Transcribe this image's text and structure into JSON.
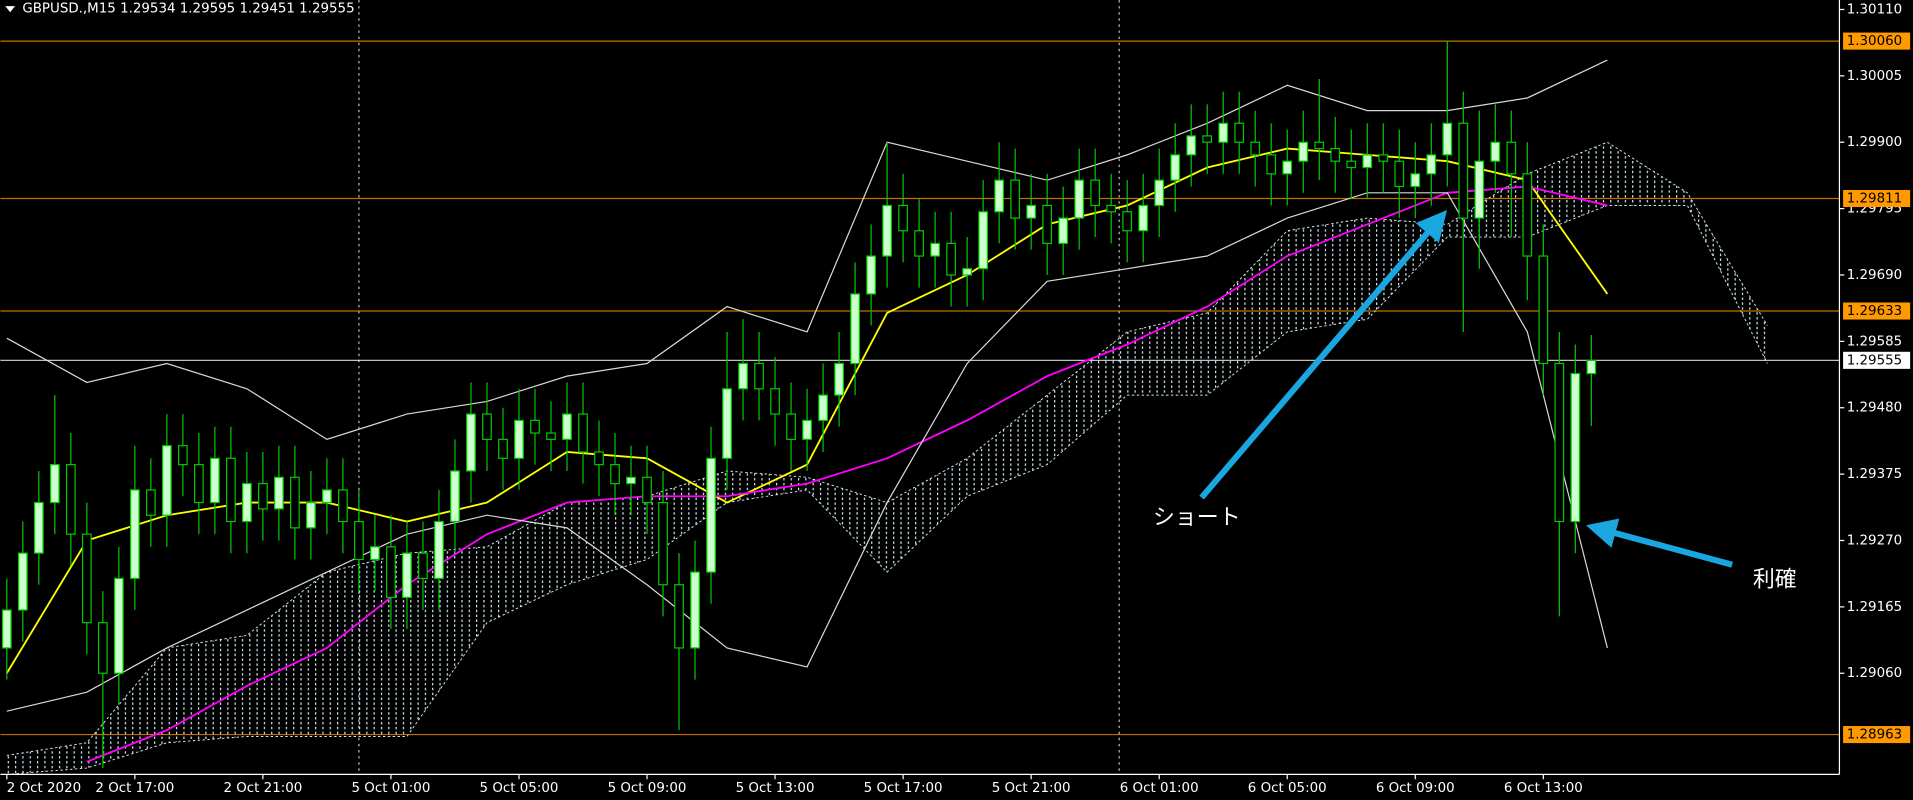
{
  "chart_data": {
    "type": "candlestick",
    "title": "GBPUSD.,M15  1.29534 1.29595 1.29451 1.29555",
    "xlim": [
      -0.4,
      114.5
    ],
    "xticks": [
      {
        "value": 0,
        "label": "2 Oct 2020"
      },
      {
        "value": 8,
        "label": "2 Oct 17:00"
      },
      {
        "value": 16,
        "label": "2 Oct 21:00"
      },
      {
        "value": 24,
        "label": "5 Oct 01:00"
      },
      {
        "value": 32,
        "label": "5 Oct 05:00"
      },
      {
        "value": 40,
        "label": "5 Oct 09:00"
      },
      {
        "value": 48,
        "label": "5 Oct 13:00"
      },
      {
        "value": 56,
        "label": "5 Oct 17:00"
      },
      {
        "value": 64,
        "label": "5 Oct 21:00"
      },
      {
        "value": 72,
        "label": "6 Oct 01:00"
      },
      {
        "value": 80,
        "label": "6 Oct 05:00"
      },
      {
        "value": 88,
        "label": "6 Oct 09:00"
      },
      {
        "value": 96,
        "label": "6 Oct 13:00"
      }
    ],
    "ylim": [
      1.289,
      1.30125
    ],
    "yticks": [
      {
        "value": 1.3011,
        "label": "1.30110"
      },
      {
        "value": 1.30005,
        "label": "1.30005"
      },
      {
        "value": 1.299,
        "label": "1.29900"
      },
      {
        "value": 1.29795,
        "label": "1.29795"
      },
      {
        "value": 1.2969,
        "label": "1.29690"
      },
      {
        "value": 1.29585,
        "label": "1.29585"
      },
      {
        "value": 1.2948,
        "label": "1.29480"
      },
      {
        "value": 1.29375,
        "label": "1.29375"
      },
      {
        "value": 1.2927,
        "label": "1.29270"
      },
      {
        "value": 1.29165,
        "label": "1.29165"
      },
      {
        "value": 1.2906,
        "label": "1.29060"
      }
    ],
    "candle_colors": {
      "up": "#ccffcc",
      "down": "#000000",
      "wick": "#00c800"
    },
    "x": [
      0,
      1,
      2,
      3,
      4,
      5,
      6,
      7,
      8,
      9,
      10,
      11,
      12,
      13,
      14,
      15,
      16,
      17,
      18,
      19,
      20,
      21,
      22,
      23,
      24,
      25,
      26,
      27,
      28,
      29,
      30,
      31,
      32,
      33,
      34,
      35,
      36,
      37,
      38,
      39,
      40,
      41,
      42,
      43,
      44,
      45,
      46,
      47,
      48,
      49,
      50,
      51,
      52,
      53,
      54,
      55,
      56,
      57,
      58,
      59,
      60,
      61,
      62,
      63,
      64,
      65,
      66,
      67,
      68,
      69,
      70,
      71,
      72,
      73,
      74,
      75,
      76,
      77,
      78,
      79,
      80,
      81,
      82,
      83,
      84,
      85,
      86,
      87,
      88,
      89,
      90,
      91,
      92,
      93,
      94,
      95,
      96,
      97,
      98,
      99
    ],
    "open": [
      1.291,
      1.2916,
      1.2925,
      1.2933,
      1.2939,
      1.2928,
      1.2914,
      1.2906,
      1.2921,
      1.2935,
      1.2931,
      1.2942,
      1.2939,
      1.2933,
      1.294,
      1.293,
      1.2936,
      1.2932,
      1.2937,
      1.2929,
      1.2933,
      1.2935,
      1.293,
      1.2924,
      1.2926,
      1.2918,
      1.2925,
      1.2921,
      1.293,
      1.2938,
      1.2947,
      1.2943,
      1.294,
      1.2946,
      1.2944,
      1.2943,
      1.2947,
      1.2941,
      1.2939,
      1.2936,
      1.2937,
      1.2933,
      1.292,
      1.291,
      1.2922,
      1.294,
      1.2951,
      1.2955,
      1.2951,
      1.2947,
      1.2943,
      1.2946,
      1.295,
      1.2955,
      1.2966,
      1.2972,
      1.298,
      1.2976,
      1.2972,
      1.2974,
      1.2969,
      1.297,
      1.2979,
      1.2984,
      1.2978,
      1.298,
      1.2974,
      1.2978,
      1.2984,
      1.298,
      1.2979,
      1.2976,
      1.298,
      1.2984,
      1.2988,
      1.2991,
      1.299,
      1.2993,
      1.299,
      1.2988,
      1.2985,
      1.2987,
      1.299,
      1.2989,
      1.2987,
      1.2986,
      1.2988,
      1.2987,
      1.2983,
      1.2985,
      1.2988,
      1.2993,
      1.2978,
      1.2987,
      1.299,
      1.2985,
      1.2972,
      1.2955,
      1.293,
      1.29534
    ],
    "high": [
      1.2921,
      1.293,
      1.2938,
      1.295,
      1.2944,
      1.2933,
      1.2919,
      1.2926,
      1.2942,
      1.294,
      1.2947,
      1.2947,
      1.2944,
      1.2945,
      1.2945,
      1.2941,
      1.2941,
      1.2942,
      1.2942,
      1.2938,
      1.294,
      1.294,
      1.2935,
      1.2931,
      1.2931,
      1.293,
      1.293,
      1.2935,
      1.2943,
      1.2952,
      1.2952,
      1.2948,
      1.2951,
      1.2951,
      1.2949,
      1.2952,
      1.2952,
      1.2946,
      1.2944,
      1.2942,
      1.2942,
      1.2938,
      1.2925,
      1.2927,
      1.2945,
      1.296,
      1.2962,
      1.296,
      1.2956,
      1.2952,
      1.2951,
      1.2955,
      1.296,
      1.2971,
      1.2977,
      1.299,
      1.2985,
      1.2981,
      1.2979,
      1.2979,
      1.2975,
      1.2984,
      1.299,
      1.2989,
      1.2985,
      1.2985,
      1.2983,
      1.2989,
      1.2989,
      1.2985,
      1.2984,
      1.2985,
      1.2989,
      1.2993,
      1.2996,
      1.2996,
      1.2998,
      1.2998,
      1.2995,
      1.2993,
      1.2992,
      1.2995,
      1.3,
      1.2994,
      1.2992,
      1.2993,
      1.2993,
      1.2992,
      1.299,
      1.2993,
      1.3006,
      1.2998,
      1.2995,
      1.2996,
      1.2995,
      1.299,
      1.2977,
      1.296,
      1.2958,
      1.29595
    ],
    "low": [
      1.2905,
      1.2911,
      1.292,
      1.2928,
      1.2923,
      1.2909,
      1.2891,
      1.2901,
      1.2916,
      1.2926,
      1.2926,
      1.2934,
      1.2928,
      1.2928,
      1.2925,
      1.2925,
      1.2927,
      1.2927,
      1.2924,
      1.2924,
      1.2928,
      1.2925,
      1.2919,
      1.2919,
      1.2913,
      1.2913,
      1.2916,
      1.2916,
      1.2925,
      1.2933,
      1.2938,
      1.2935,
      1.2935,
      1.2939,
      1.2938,
      1.2938,
      1.2936,
      1.2934,
      1.2931,
      1.2931,
      1.2928,
      1.2915,
      1.2897,
      1.2905,
      1.2917,
      1.2935,
      1.2946,
      1.2946,
      1.2942,
      1.2938,
      1.2938,
      1.2941,
      1.2945,
      1.295,
      1.2961,
      1.2967,
      1.2971,
      1.2967,
      1.2967,
      1.2964,
      1.2964,
      1.2965,
      1.2974,
      1.2973,
      1.2973,
      1.2969,
      1.2969,
      1.2973,
      1.2975,
      1.2974,
      1.2971,
      1.2971,
      1.2975,
      1.2979,
      1.2983,
      1.2985,
      1.2985,
      1.2985,
      1.2983,
      1.298,
      1.298,
      1.2982,
      1.2984,
      1.2982,
      1.2981,
      1.2981,
      1.2982,
      1.2978,
      1.2978,
      1.298,
      1.2983,
      1.296,
      1.297,
      1.2982,
      1.2975,
      1.2965,
      1.295,
      1.2915,
      1.2925,
      1.29451
    ],
    "close": [
      1.2916,
      1.2925,
      1.2933,
      1.2939,
      1.2928,
      1.2914,
      1.2906,
      1.2921,
      1.2935,
      1.2931,
      1.2942,
      1.2939,
      1.2933,
      1.294,
      1.293,
      1.2936,
      1.2932,
      1.2937,
      1.2929,
      1.2933,
      1.2935,
      1.293,
      1.2924,
      1.2926,
      1.2918,
      1.2925,
      1.2921,
      1.293,
      1.2938,
      1.2947,
      1.2943,
      1.294,
      1.2946,
      1.2944,
      1.2943,
      1.2947,
      1.2941,
      1.2939,
      1.2936,
      1.2937,
      1.2933,
      1.292,
      1.291,
      1.2922,
      1.294,
      1.2951,
      1.2955,
      1.2951,
      1.2947,
      1.2943,
      1.2946,
      1.295,
      1.2955,
      1.2966,
      1.2972,
      1.298,
      1.2976,
      1.2972,
      1.2974,
      1.2969,
      1.297,
      1.2979,
      1.2984,
      1.2978,
      1.298,
      1.2974,
      1.2978,
      1.2984,
      1.298,
      1.2979,
      1.2976,
      1.298,
      1.2984,
      1.2988,
      1.2991,
      1.299,
      1.2993,
      1.299,
      1.2988,
      1.2985,
      1.2987,
      1.299,
      1.2989,
      1.2987,
      1.2986,
      1.2988,
      1.2987,
      1.2983,
      1.2985,
      1.2988,
      1.2993,
      1.2978,
      1.2987,
      1.299,
      1.2985,
      1.2972,
      1.2955,
      1.293,
      1.29534,
      1.29555
    ],
    "lines": [
      {
        "color": "#ffff00",
        "x": [
          0,
          5,
          10,
          15,
          20,
          25,
          30,
          35,
          40,
          45,
          50,
          55,
          60,
          65,
          70,
          75,
          80,
          85,
          90,
          95,
          100
        ],
        "values": [
          1.2906,
          1.2927,
          1.2931,
          1.2933,
          1.2933,
          1.293,
          1.2933,
          1.2941,
          1.294,
          1.2933,
          1.2939,
          1.2963,
          1.2969,
          1.2977,
          1.298,
          1.2986,
          1.2989,
          1.2988,
          1.2987,
          1.2984,
          1.2966
        ]
      },
      {
        "color": "#ff00ff",
        "x": [
          0,
          5,
          10,
          15,
          20,
          25,
          30,
          35,
          40,
          45,
          50,
          55,
          60,
          65,
          70,
          75,
          80,
          85,
          90,
          95,
          100
        ],
        "values": [
          null,
          1.2892,
          1.2897,
          1.2904,
          1.291,
          1.292,
          1.2928,
          1.2933,
          1.2934,
          1.2934,
          1.2936,
          1.294,
          1.2946,
          1.2953,
          1.2958,
          1.2964,
          1.2972,
          1.2977,
          1.2982,
          1.2983,
          1.298
        ]
      },
      {
        "color": "#d8d8d8",
        "x": [
          0,
          5,
          10,
          15,
          20,
          25,
          30,
          35,
          40,
          45,
          50,
          55,
          60,
          65,
          70,
          75,
          80,
          85,
          90,
          95,
          100
        ],
        "values": [
          1.2959,
          1.2952,
          1.2955,
          1.2951,
          1.2943,
          1.2947,
          1.2949,
          1.2953,
          1.2955,
          1.2964,
          1.296,
          1.299,
          1.2987,
          1.2984,
          1.2988,
          1.2993,
          1.2999,
          1.2995,
          1.2995,
          1.2997,
          1.3003
        ]
      },
      {
        "color": "#d8d8d8",
        "x": [
          0,
          5,
          10,
          15,
          20,
          25,
          30,
          35,
          40,
          45,
          50,
          55,
          60,
          65,
          70,
          75,
          80,
          85,
          90,
          95,
          100
        ],
        "values": [
          1.29,
          1.2903,
          1.291,
          1.2916,
          1.2922,
          1.2928,
          1.2931,
          1.2929,
          1.292,
          1.291,
          1.2907,
          1.2933,
          1.2955,
          1.2968,
          1.297,
          1.2972,
          1.2978,
          1.2982,
          1.2982,
          1.296,
          1.291
        ]
      }
    ],
    "cloud": {
      "color": "#cfe6ee",
      "x": [
        0,
        5,
        10,
        15,
        20,
        25,
        30,
        35,
        40,
        45,
        50,
        55,
        60,
        65,
        70,
        75,
        80,
        85,
        90,
        95,
        100,
        105,
        110
      ],
      "span_a": [
        1.2893,
        1.2895,
        1.291,
        1.2912,
        1.2922,
        1.2925,
        1.2926,
        1.2933,
        1.2934,
        1.2938,
        1.2937,
        1.2933,
        1.294,
        1.295,
        1.296,
        1.2963,
        1.2976,
        1.2978,
        1.2977,
        1.2985,
        1.299,
        1.2982,
        1.2961
      ],
      "span_b": [
        1.289,
        1.2891,
        1.2895,
        1.2896,
        1.2896,
        1.2896,
        1.2914,
        1.292,
        1.2924,
        1.2933,
        1.2935,
        1.2922,
        1.2934,
        1.2939,
        1.295,
        1.295,
        1.296,
        1.2962,
        1.2975,
        1.2975,
        1.298,
        1.298,
        1.2955
      ]
    },
    "levels": [
      {
        "value": 1.3006,
        "label": "1.30060",
        "color": "#ff9900"
      },
      {
        "value": 1.29811,
        "label": "1.29811",
        "color": "#ff9900"
      },
      {
        "value": 1.29633,
        "label": "1.29633",
        "color": "#ff9900"
      },
      {
        "value": 1.28963,
        "label": "1.28963",
        "color": "#ff9900"
      },
      {
        "value": 1.29555,
        "label": "1.29555",
        "color": "#ffffff"
      }
    ],
    "separators": [
      22,
      69.5
    ],
    "annotations": [
      "ショート",
      "利確"
    ]
  }
}
